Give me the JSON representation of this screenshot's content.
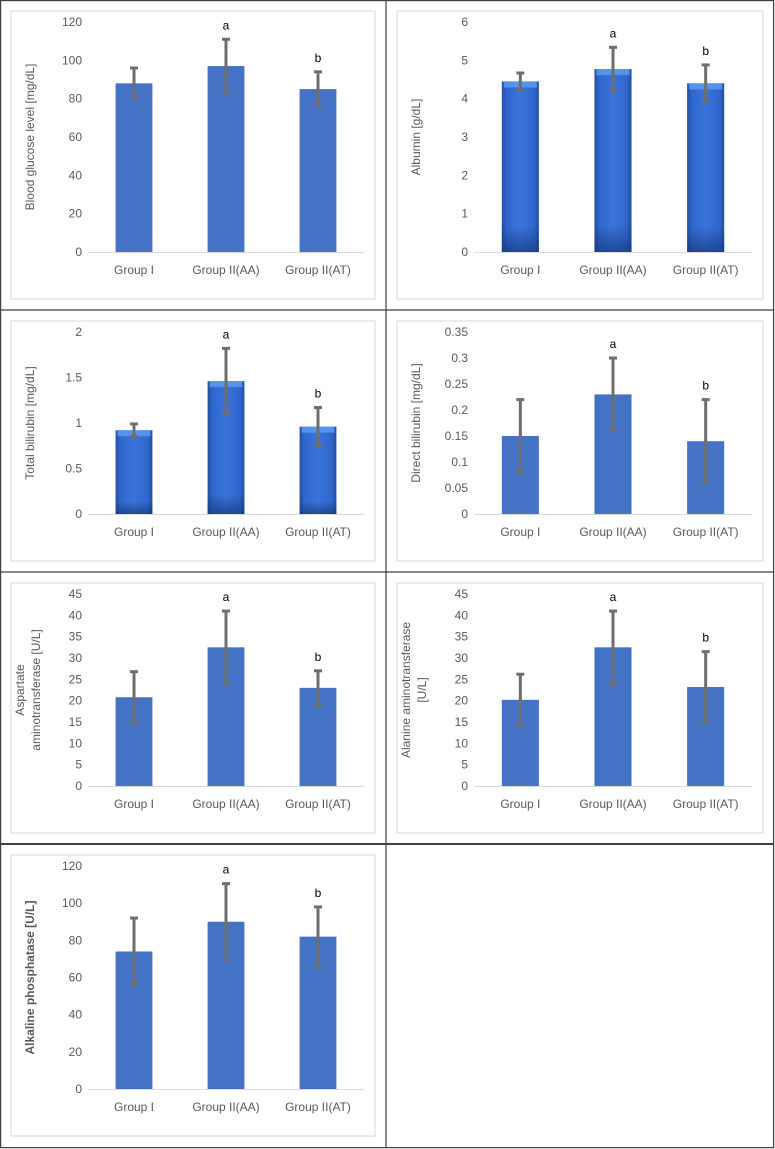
{
  "chart_data": [
    {
      "type": "bar",
      "categories": [
        "Group I",
        "Group II(AA)",
        "Group II(AT)"
      ],
      "values": [
        88,
        97,
        85
      ],
      "error": [
        8,
        14,
        9
      ],
      "annotations": [
        "",
        "a",
        "b"
      ],
      "ylabel": "Blood glucose level [mg/dL]",
      "ylim": [
        0,
        120
      ],
      "yticks": [
        0,
        20,
        40,
        60,
        80,
        100,
        120
      ],
      "ytick_labels": [
        "0",
        "20",
        "40",
        "60",
        "80",
        "100",
        "120"
      ],
      "style": "flat",
      "bar_color": "#4472C4",
      "grid": false
    },
    {
      "type": "bar",
      "categories": [
        "Group I",
        "Group II(AA)",
        "Group II(AT)"
      ],
      "values": [
        4.45,
        4.77,
        4.4
      ],
      "error": [
        0.22,
        0.57,
        0.48
      ],
      "annotations": [
        "",
        "a",
        "b"
      ],
      "ylabel": "Albumin [g/dL]",
      "ylim": [
        0,
        6
      ],
      "yticks": [
        0,
        1,
        2,
        3,
        4,
        5,
        6
      ],
      "ytick_labels": [
        "0",
        "1",
        "2",
        "3",
        "4",
        "5",
        "6"
      ],
      "style": "bevel",
      "bar_color": "#2E63C9",
      "grid": false
    },
    {
      "type": "bar",
      "categories": [
        "Group I",
        "Group II(AA)",
        "Group II(AT)"
      ],
      "values": [
        0.92,
        1.46,
        0.96
      ],
      "error": [
        0.07,
        0.36,
        0.21
      ],
      "annotations": [
        "",
        "a",
        "b"
      ],
      "ylabel": "Total bilirubin [mg/dL]",
      "ylim": [
        0,
        2
      ],
      "yticks": [
        0,
        0.5,
        1,
        1.5,
        2
      ],
      "ytick_labels": [
        "0",
        "0.5",
        "1",
        "1.5",
        "2"
      ],
      "style": "bevel",
      "bar_color": "#2E63C9",
      "grid": false
    },
    {
      "type": "bar",
      "categories": [
        "Group I",
        "Group II(AA)",
        "Group II(AT)"
      ],
      "values": [
        0.15,
        0.23,
        0.14
      ],
      "error": [
        0.07,
        0.07,
        0.08
      ],
      "annotations": [
        "",
        "a",
        "b"
      ],
      "ylabel": "Direct bilirubin [mg/dL]",
      "ylim": [
        0,
        0.35
      ],
      "yticks": [
        0,
        0.05,
        0.1,
        0.15,
        0.2,
        0.25,
        0.3,
        0.35
      ],
      "ytick_labels": [
        "0",
        "0.05",
        "0.1",
        "0.15",
        "0.2",
        "0.25",
        "0.3",
        "0.35"
      ],
      "style": "flat",
      "bar_color": "#4472C4",
      "grid": false
    },
    {
      "type": "bar",
      "categories": [
        "Group I",
        "Group II(AA)",
        "Group II(AT)"
      ],
      "values": [
        20.8,
        32.5,
        23
      ],
      "error": [
        6,
        8.5,
        4
      ],
      "annotations": [
        "",
        "a",
        "b"
      ],
      "ylabel": "Aspartate aminotransferase [U/L]",
      "ylabel_lines": [
        "Aspartate",
        "aminotransferase [U/L]"
      ],
      "ylim": [
        0,
        45
      ],
      "yticks": [
        0,
        5,
        10,
        15,
        20,
        25,
        30,
        35,
        40,
        45
      ],
      "ytick_labels": [
        "0",
        "5",
        "10",
        "15",
        "20",
        "25",
        "30",
        "35",
        "40",
        "45"
      ],
      "style": "flat",
      "bar_color": "#4472C4",
      "grid": false
    },
    {
      "type": "bar",
      "categories": [
        "Group I",
        "Group II(AA)",
        "Group II(AT)"
      ],
      "values": [
        20.2,
        32.5,
        23.2
      ],
      "error": [
        6,
        8.5,
        8.3
      ],
      "annotations": [
        "",
        "a",
        "b"
      ],
      "ylabel": "Alanine aminotransferase [U/L]",
      "ylabel_lines": [
        "Alanine aminotransferase",
        "[U/L]"
      ],
      "ylim": [
        0,
        45
      ],
      "yticks": [
        0,
        5,
        10,
        15,
        20,
        25,
        30,
        35,
        40,
        45
      ],
      "ytick_labels": [
        "0",
        "5",
        "10",
        "15",
        "20",
        "25",
        "30",
        "35",
        "40",
        "45"
      ],
      "style": "flat",
      "bar_color": "#4472C4",
      "grid": false
    },
    {
      "type": "bar",
      "categories": [
        "Group I",
        "Group II(AA)",
        "Group II(AT)"
      ],
      "values": [
        74,
        90,
        82
      ],
      "error": [
        18,
        20.5,
        16
      ],
      "annotations": [
        "",
        "a",
        "b"
      ],
      "ylabel": "Alkaline phosphatase [U/L]",
      "ylabel_bold": true,
      "ylim": [
        0,
        120
      ],
      "yticks": [
        0,
        20,
        40,
        60,
        80,
        100,
        120
      ],
      "ytick_labels": [
        "0",
        "20",
        "40",
        "60",
        "80",
        "100",
        "120"
      ],
      "style": "flat",
      "bar_color": "#4472C4",
      "grid": false
    }
  ],
  "colors": {
    "flat_bar": "#4472C4",
    "bevel_light": "#5B9BF0",
    "bevel_dark": "#1F4E9E",
    "error_bar": "#6E6E6E",
    "axis_text": "#595959",
    "chart_border": "#D9D9D9",
    "table_border": "#3F3F3F"
  }
}
